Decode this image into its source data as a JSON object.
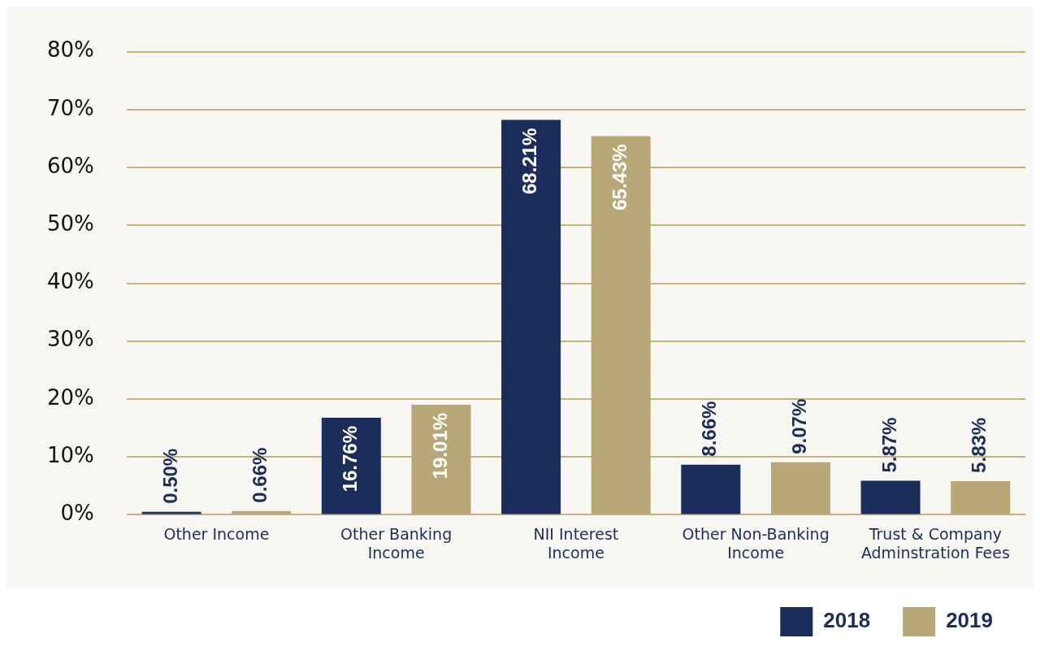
{
  "chart_data": {
    "type": "bar",
    "categories": [
      "Other Income",
      "Other Banking Income",
      "NII Interest Income",
      "Other Non-Banking Income",
      "Trust & Company Adminstration Fees"
    ],
    "series": [
      {
        "name": "2018",
        "color": "#1b2d5b",
        "values": [
          0.5,
          16.76,
          68.21,
          8.66,
          5.87
        ],
        "value_labels": [
          "0.50%",
          "16.76%",
          "68.21%",
          "8.66%",
          "5.87%"
        ]
      },
      {
        "name": "2019",
        "color": "#b8a878",
        "values": [
          0.66,
          19.01,
          65.43,
          9.07,
          5.83
        ],
        "value_labels": [
          "0.66%",
          "19.01%",
          "65.43%",
          "9.07%",
          "5.83%"
        ]
      }
    ],
    "ylim": [
      0,
      80
    ],
    "yticks": [
      {
        "value": 0,
        "label": "0%"
      },
      {
        "value": 10,
        "label": "10%"
      },
      {
        "value": 20,
        "label": "20%"
      },
      {
        "value": 30,
        "label": "30%"
      },
      {
        "value": 40,
        "label": "40%"
      },
      {
        "value": 50,
        "label": "50%"
      },
      {
        "value": 60,
        "label": "60%"
      },
      {
        "value": 70,
        "label": "70%"
      },
      {
        "value": 80,
        "label": "80%"
      }
    ],
    "grid": "y",
    "legend": "bottom right"
  }
}
